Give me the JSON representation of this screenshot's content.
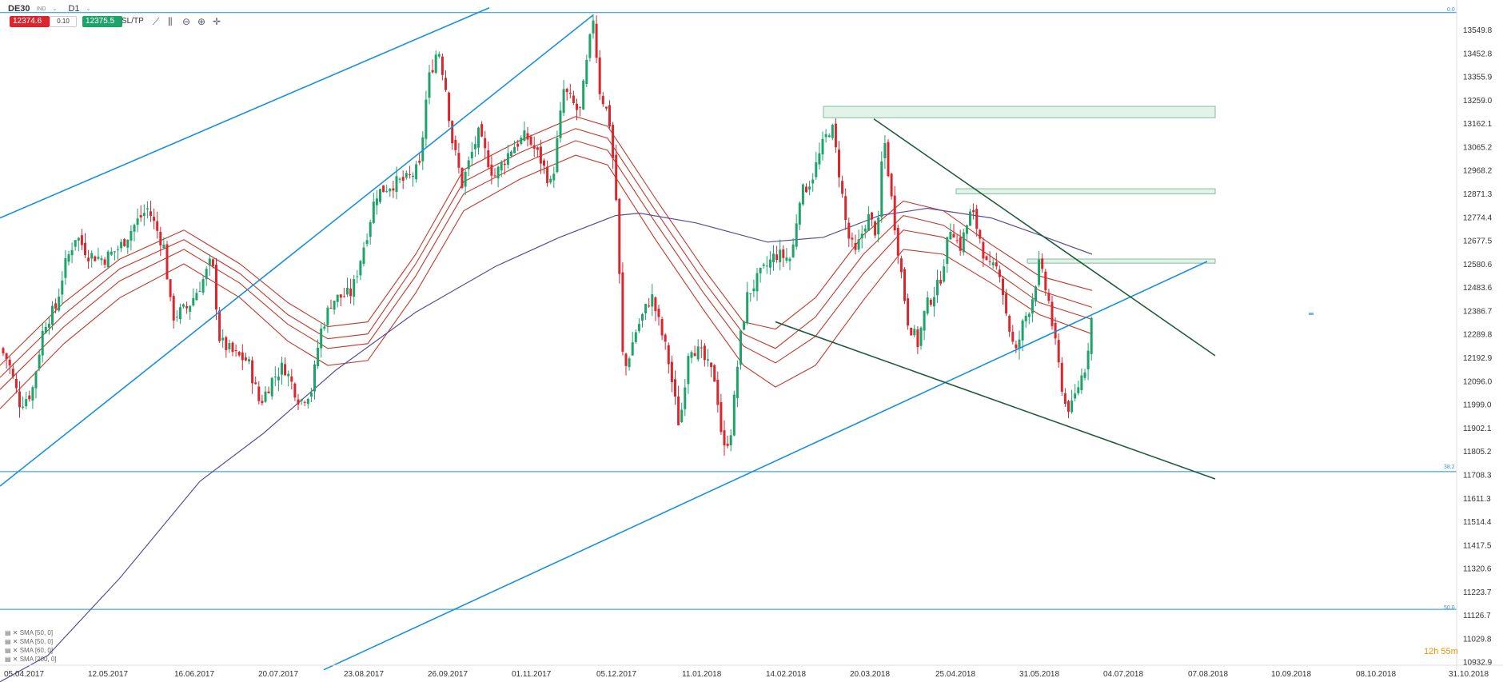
{
  "toolbar": {
    "symbol": "DE30",
    "symbol_sub": "IND",
    "timeframe": "D1",
    "sell_price": "12374.6",
    "lot": "0.10",
    "buy_price": "12375.5",
    "sltp": "SL/TP"
  },
  "timer": "12h 55m",
  "indicators": [
    "SMA [50, 0]",
    "SMA [50, 0]",
    "SMA [60, 0]",
    "SMA [200, 0]"
  ],
  "fib_labels": [
    "0.0",
    "38.2",
    "50.0"
  ],
  "colors": {
    "up": "#1ea36b",
    "down": "#d9262f",
    "trend_blue": "#1a8fe0",
    "trend_green": "#1f5c3a",
    "sma_red": "#c0392b",
    "sma_purple": "#5d4c96"
  },
  "chart_data": {
    "type": "candlestick",
    "instrument": "DE30",
    "timeframe": "D1",
    "y_axis_ticks": [
      13549.8,
      13452.8,
      13355.9,
      13259.0,
      13162.1,
      13065.2,
      12968.2,
      12871.3,
      12774.4,
      12677.5,
      12580.6,
      12483.6,
      12386.7,
      12289.8,
      12192.9,
      12096.0,
      11999.0,
      11902.1,
      11805.2,
      11708.3,
      11611.3,
      11514.4,
      11417.5,
      11320.6,
      11223.7,
      11126.7,
      11029.8,
      10932.9
    ],
    "x_axis_ticks": [
      "05.04.2017",
      "12.05.2017",
      "16.06.2017",
      "20.07.2017",
      "23.08.2017",
      "26.09.2017",
      "01.11.2017",
      "05.12.2017",
      "11.01.2018",
      "14.02.2018",
      "20.03.2018",
      "25.04.2018",
      "31.05.2018",
      "04.07.2018",
      "07.08.2018",
      "10.09.2018",
      "08.10.2018",
      "31.10.2018"
    ],
    "ylim": [
      10932.9,
      13646.7
    ],
    "close_path": [
      [
        0,
        12230
      ],
      [
        10,
        12180
      ],
      [
        25,
        12000
      ],
      [
        40,
        12050
      ],
      [
        55,
        12330
      ],
      [
        70,
        12400
      ],
      [
        80,
        12560
      ],
      [
        95,
        12700
      ],
      [
        110,
        12620
      ],
      [
        130,
        12600
      ],
      [
        150,
        12650
      ],
      [
        170,
        12750
      ],
      [
        185,
        12810
      ],
      [
        205,
        12650
      ],
      [
        215,
        12360
      ],
      [
        235,
        12400
      ],
      [
        255,
        12520
      ],
      [
        265,
        12600
      ],
      [
        275,
        12260
      ],
      [
        295,
        12200
      ],
      [
        310,
        12180
      ],
      [
        325,
        12000
      ],
      [
        340,
        12100
      ],
      [
        355,
        12160
      ],
      [
        375,
        12010
      ],
      [
        390,
        12060
      ],
      [
        400,
        12290
      ],
      [
        415,
        12430
      ],
      [
        440,
        12460
      ],
      [
        460,
        12720
      ],
      [
        470,
        12870
      ],
      [
        490,
        12910
      ],
      [
        510,
        12930
      ],
      [
        525,
        12980
      ],
      [
        535,
        13330
      ],
      [
        548,
        13480
      ],
      [
        558,
        13300
      ],
      [
        565,
        13100
      ],
      [
        578,
        12910
      ],
      [
        598,
        13120
      ],
      [
        618,
        12940
      ],
      [
        640,
        13060
      ],
      [
        658,
        13110
      ],
      [
        675,
        13020
      ],
      [
        690,
        12900
      ],
      [
        705,
        13300
      ],
      [
        725,
        13200
      ],
      [
        742,
        13600
      ],
      [
        750,
        13300
      ],
      [
        762,
        13180
      ],
      [
        770,
        12900
      ],
      [
        780,
        12120
      ],
      [
        795,
        12300
      ],
      [
        815,
        12450
      ],
      [
        835,
        12200
      ],
      [
        850,
        11900
      ],
      [
        862,
        12250
      ],
      [
        878,
        12200
      ],
      [
        895,
        12100
      ],
      [
        905,
        11800
      ],
      [
        915,
        11900
      ],
      [
        925,
        12250
      ],
      [
        935,
        12450
      ],
      [
        950,
        12530
      ],
      [
        970,
        12620
      ],
      [
        990,
        12600
      ],
      [
        1000,
        12860
      ],
      [
        1015,
        12930
      ],
      [
        1030,
        13080
      ],
      [
        1040,
        13160
      ],
      [
        1050,
        12950
      ],
      [
        1060,
        12700
      ],
      [
        1070,
        12620
      ],
      [
        1085,
        12780
      ],
      [
        1098,
        12700
      ],
      [
        1105,
        13130
      ],
      [
        1115,
        12850
      ],
      [
        1125,
        12600
      ],
      [
        1135,
        12350
      ],
      [
        1148,
        12250
      ],
      [
        1158,
        12400
      ],
      [
        1175,
        12500
      ],
      [
        1190,
        12750
      ],
      [
        1200,
        12640
      ],
      [
        1215,
        12800
      ],
      [
        1225,
        12700
      ],
      [
        1235,
        12560
      ],
      [
        1250,
        12560
      ],
      [
        1260,
        12350
      ],
      [
        1270,
        12200
      ],
      [
        1280,
        12340
      ],
      [
        1290,
        12420
      ],
      [
        1300,
        12580
      ],
      [
        1312,
        12420
      ],
      [
        1322,
        12200
      ],
      [
        1332,
        12000
      ],
      [
        1340,
        11980
      ],
      [
        1350,
        12090
      ],
      [
        1358,
        12160
      ],
      [
        1366,
        12375
      ]
    ],
    "trendlines": [
      {
        "color": "trend_blue",
        "points": [
          [
            0,
            12770
          ],
          [
            612,
            13640
          ]
        ]
      },
      {
        "color": "trend_blue",
        "points": [
          [
            0,
            11660
          ],
          [
            742,
            13610
          ]
        ]
      },
      {
        "color": "trend_blue",
        "points": [
          [
            405,
            10900
          ],
          [
            1510,
            12590
          ]
        ]
      },
      {
        "color": "trend_green",
        "points": [
          [
            1093,
            13180
          ],
          [
            1520,
            12200
          ]
        ]
      },
      {
        "color": "trend_green",
        "points": [
          [
            970,
            12340
          ],
          [
            1520,
            11690
          ]
        ]
      }
    ],
    "horizontal_levels": [
      {
        "price": 13620,
        "label": "0.0"
      },
      {
        "price": 11720,
        "label": "38.2"
      },
      {
        "price": 11150,
        "label": "50.0"
      }
    ],
    "zones": [
      {
        "x0": 1030,
        "x1": 1520,
        "top": 13232,
        "bottom": 13185
      },
      {
        "x0": 1196,
        "x1": 1520,
        "top": 12891,
        "bottom": 12870
      },
      {
        "x0": 1285,
        "x1": 1520,
        "top": 12600,
        "bottom": 12583
      }
    ],
    "sma_purple": [
      [
        0,
        10850
      ],
      [
        60,
        10960
      ],
      [
        150,
        11280
      ],
      [
        250,
        11680
      ],
      [
        330,
        11880
      ],
      [
        420,
        12140
      ],
      [
        520,
        12380
      ],
      [
        620,
        12570
      ],
      [
        700,
        12690
      ],
      [
        770,
        12780
      ],
      [
        800,
        12790
      ],
      [
        870,
        12750
      ],
      [
        960,
        12670
      ],
      [
        1030,
        12690
      ],
      [
        1100,
        12780
      ],
      [
        1160,
        12810
      ],
      [
        1240,
        12770
      ],
      [
        1300,
        12700
      ],
      [
        1366,
        12620
      ]
    ],
    "sma_red_bands": [
      [
        [
          0,
          12160
        ],
        [
          80,
          12420
        ],
        [
          150,
          12600
        ],
        [
          230,
          12720
        ],
        [
          300,
          12580
        ],
        [
          360,
          12420
        ],
        [
          410,
          12320
        ],
        [
          460,
          12340
        ],
        [
          520,
          12620
        ],
        [
          580,
          12970
        ],
        [
          650,
          13090
        ],
        [
          720,
          13190
        ],
        [
          760,
          13150
        ],
        [
          820,
          12850
        ],
        [
          880,
          12560
        ],
        [
          930,
          12340
        ],
        [
          970,
          12310
        ],
        [
          1020,
          12440
        ],
        [
          1080,
          12700
        ],
        [
          1130,
          12840
        ],
        [
          1180,
          12800
        ],
        [
          1240,
          12660
        ],
        [
          1300,
          12530
        ],
        [
          1366,
          12470
        ]
      ],
      [
        [
          0,
          12110
        ],
        [
          80,
          12370
        ],
        [
          150,
          12560
        ],
        [
          230,
          12680
        ],
        [
          300,
          12540
        ],
        [
          360,
          12370
        ],
        [
          410,
          12270
        ],
        [
          460,
          12290
        ],
        [
          520,
          12580
        ],
        [
          580,
          12920
        ],
        [
          650,
          13040
        ],
        [
          720,
          13140
        ],
        [
          760,
          13100
        ],
        [
          820,
          12800
        ],
        [
          880,
          12510
        ],
        [
          930,
          12290
        ],
        [
          970,
          12230
        ],
        [
          1020,
          12360
        ],
        [
          1080,
          12620
        ],
        [
          1130,
          12780
        ],
        [
          1180,
          12740
        ],
        [
          1240,
          12610
        ],
        [
          1300,
          12470
        ],
        [
          1366,
          12400
        ]
      ],
      [
        [
          0,
          12060
        ],
        [
          80,
          12320
        ],
        [
          150,
          12510
        ],
        [
          230,
          12640
        ],
        [
          300,
          12500
        ],
        [
          360,
          12330
        ],
        [
          410,
          12230
        ],
        [
          460,
          12250
        ],
        [
          520,
          12530
        ],
        [
          580,
          12870
        ],
        [
          650,
          12990
        ],
        [
          720,
          13090
        ],
        [
          760,
          13050
        ],
        [
          820,
          12750
        ],
        [
          880,
          12460
        ],
        [
          930,
          12240
        ],
        [
          970,
          12170
        ],
        [
          1020,
          12280
        ],
        [
          1080,
          12540
        ],
        [
          1130,
          12720
        ],
        [
          1180,
          12690
        ],
        [
          1240,
          12560
        ],
        [
          1300,
          12420
        ],
        [
          1366,
          12350
        ]
      ],
      [
        [
          0,
          11980
        ],
        [
          80,
          12250
        ],
        [
          150,
          12440
        ],
        [
          230,
          12580
        ],
        [
          300,
          12440
        ],
        [
          360,
          12260
        ],
        [
          410,
          12160
        ],
        [
          460,
          12180
        ],
        [
          520,
          12460
        ],
        [
          580,
          12800
        ],
        [
          650,
          12930
        ],
        [
          720,
          13030
        ],
        [
          760,
          12990
        ],
        [
          820,
          12680
        ],
        [
          880,
          12390
        ],
        [
          930,
          12160
        ],
        [
          970,
          12070
        ],
        [
          1020,
          12160
        ],
        [
          1080,
          12430
        ],
        [
          1130,
          12640
        ],
        [
          1180,
          12620
        ],
        [
          1240,
          12500
        ],
        [
          1300,
          12370
        ],
        [
          1366,
          12290
        ]
      ]
    ]
  }
}
